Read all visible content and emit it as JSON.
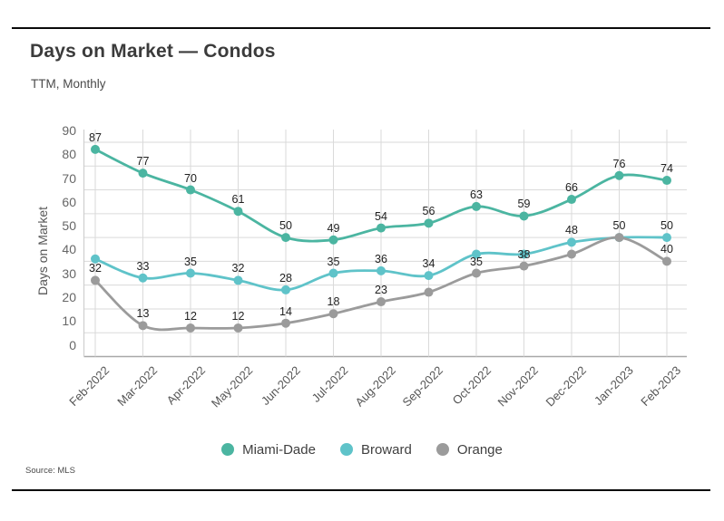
{
  "header": {
    "title": "Days on Market — Condos",
    "subtitle": "TTM, Monthly"
  },
  "source": {
    "label": "Source: MLS"
  },
  "chart_data": {
    "type": "line",
    "title": "Days on Market — Condos",
    "subtitle": "TTM, Monthly",
    "xlabel": "",
    "ylabel": "Days on Market",
    "ylim": [
      0,
      90
    ],
    "ytick_step": 10,
    "grid": true,
    "legend_position": "bottom",
    "categories": [
      "Feb-2022",
      "Mar-2022",
      "Apr-2022",
      "May-2022",
      "Jun-2022",
      "Jul-2022",
      "Aug-2022",
      "Sep-2022",
      "Oct-2022",
      "Nov-2022",
      "Dec-2022",
      "Jan-2023",
      "Feb-2023"
    ],
    "series": [
      {
        "name": "Miami-Dade",
        "color": "#4BB5A1",
        "values": [
          87,
          77,
          70,
          61,
          50,
          49,
          54,
          56,
          63,
          59,
          66,
          76,
          74
        ],
        "labeled": [
          true,
          true,
          true,
          true,
          true,
          true,
          true,
          true,
          true,
          true,
          true,
          true,
          true
        ]
      },
      {
        "name": "Broward",
        "color": "#5FC3C9",
        "values": [
          41,
          33,
          35,
          32,
          28,
          35,
          36,
          34,
          43,
          43,
          48,
          50,
          50
        ],
        "labeled": [
          false,
          true,
          true,
          true,
          true,
          true,
          true,
          true,
          false,
          false,
          true,
          false,
          true
        ]
      },
      {
        "name": "Orange",
        "color": "#9B9B9B",
        "values": [
          32,
          13,
          12,
          12,
          14,
          18,
          23,
          27,
          35,
          38,
          43,
          50,
          40
        ],
        "labeled": [
          true,
          true,
          true,
          true,
          true,
          true,
          true,
          false,
          true,
          true,
          false,
          true,
          true
        ]
      }
    ]
  }
}
